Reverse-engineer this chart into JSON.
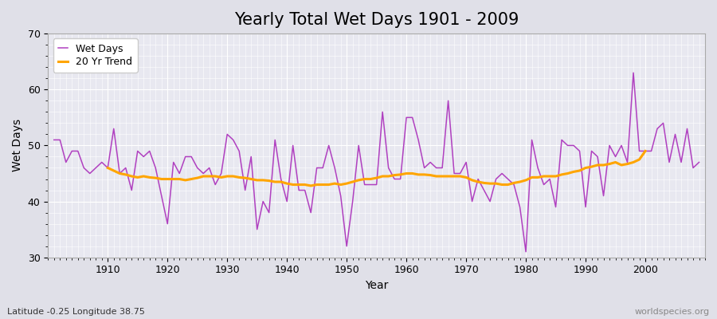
{
  "title": "Yearly Total Wet Days 1901 - 2009",
  "xlabel": "Year",
  "ylabel": "Wet Days",
  "subtitle": "Latitude -0.25 Longitude 38.75",
  "watermark": "worldspecies.org",
  "years": [
    1901,
    1902,
    1903,
    1904,
    1905,
    1906,
    1907,
    1908,
    1909,
    1910,
    1911,
    1912,
    1913,
    1914,
    1915,
    1916,
    1917,
    1918,
    1919,
    1920,
    1921,
    1922,
    1923,
    1924,
    1925,
    1926,
    1927,
    1928,
    1929,
    1930,
    1931,
    1932,
    1933,
    1934,
    1935,
    1936,
    1937,
    1938,
    1939,
    1940,
    1941,
    1942,
    1943,
    1944,
    1945,
    1946,
    1947,
    1948,
    1949,
    1950,
    1951,
    1952,
    1953,
    1954,
    1955,
    1956,
    1957,
    1958,
    1959,
    1960,
    1961,
    1962,
    1963,
    1964,
    1965,
    1966,
    1967,
    1968,
    1969,
    1970,
    1971,
    1972,
    1973,
    1974,
    1975,
    1976,
    1977,
    1978,
    1979,
    1980,
    1981,
    1982,
    1983,
    1984,
    1985,
    1986,
    1987,
    1988,
    1989,
    1990,
    1991,
    1992,
    1993,
    1994,
    1995,
    1996,
    1997,
    1998,
    1999,
    2000,
    2001,
    2002,
    2003,
    2004,
    2005,
    2006,
    2007,
    2008,
    2009
  ],
  "wet_days": [
    51,
    51,
    47,
    49,
    49,
    46,
    45,
    46,
    47,
    46,
    53,
    45,
    46,
    42,
    49,
    48,
    49,
    46,
    41,
    36,
    47,
    45,
    48,
    48,
    46,
    45,
    46,
    43,
    45,
    52,
    51,
    49,
    42,
    48,
    35,
    40,
    38,
    51,
    44,
    40,
    50,
    42,
    42,
    38,
    46,
    46,
    50,
    46,
    41,
    32,
    40,
    50,
    43,
    43,
    43,
    56,
    46,
    44,
    44,
    55,
    55,
    51,
    46,
    47,
    46,
    46,
    58,
    45,
    45,
    47,
    40,
    44,
    42,
    40,
    44,
    45,
    44,
    43,
    39,
    31,
    51,
    46,
    43,
    44,
    39,
    51,
    50,
    50,
    49,
    39,
    49,
    48,
    41,
    50,
    48,
    50,
    47,
    63,
    49,
    49,
    49,
    53,
    54,
    47,
    52,
    47,
    53,
    46,
    47
  ],
  "trend_years": [
    1910,
    1911,
    1912,
    1913,
    1914,
    1915,
    1916,
    1917,
    1918,
    1919,
    1920,
    1921,
    1922,
    1923,
    1924,
    1925,
    1926,
    1927,
    1928,
    1929,
    1930,
    1931,
    1932,
    1933,
    1934,
    1935,
    1936,
    1937,
    1938,
    1939,
    1940,
    1941,
    1942,
    1943,
    1944,
    1945,
    1946,
    1947,
    1948,
    1949,
    1950,
    1951,
    1952,
    1953,
    1954,
    1955,
    1956,
    1957,
    1958,
    1959,
    1960,
    1961,
    1962,
    1963,
    1964,
    1965,
    1966,
    1967,
    1968,
    1969,
    1970,
    1971,
    1972,
    1973,
    1974,
    1975,
    1976,
    1977,
    1978,
    1979,
    1980,
    1981,
    1982,
    1983,
    1984,
    1985,
    1986,
    1987,
    1988,
    1989,
    1990,
    1991,
    1992,
    1993,
    1994,
    1995,
    1996,
    1997,
    1998,
    1999,
    2000
  ],
  "trend_values": [
    46.0,
    45.5,
    45.0,
    44.8,
    44.5,
    44.3,
    44.5,
    44.3,
    44.2,
    44.0,
    44.0,
    44.0,
    44.0,
    43.8,
    44.0,
    44.2,
    44.5,
    44.5,
    44.5,
    44.3,
    44.5,
    44.5,
    44.3,
    44.2,
    44.0,
    43.8,
    43.8,
    43.7,
    43.5,
    43.5,
    43.2,
    43.0,
    43.0,
    43.0,
    42.8,
    43.0,
    43.0,
    43.0,
    43.2,
    43.0,
    43.2,
    43.5,
    43.8,
    44.0,
    44.0,
    44.2,
    44.5,
    44.5,
    44.7,
    44.8,
    45.0,
    45.0,
    44.8,
    44.8,
    44.7,
    44.5,
    44.5,
    44.5,
    44.5,
    44.5,
    44.3,
    43.8,
    43.5,
    43.3,
    43.2,
    43.2,
    43.0,
    43.0,
    43.3,
    43.5,
    43.8,
    44.3,
    44.3,
    44.5,
    44.5,
    44.5,
    44.8,
    45.0,
    45.3,
    45.5,
    46.0,
    46.2,
    46.5,
    46.5,
    46.7,
    47.0,
    46.5,
    46.7,
    47.0,
    47.5,
    49.0
  ],
  "wet_days_color": "#b040c0",
  "trend_color": "#FFA500",
  "fig_bg_color": "#e0e0e8",
  "plot_bg_color": "#e8e8f0",
  "ylim": [
    30,
    70
  ],
  "yticks": [
    30,
    40,
    50,
    60,
    70
  ],
  "xlim_left": 1900,
  "xlim_right": 2010,
  "title_fontsize": 15,
  "axis_fontsize": 10,
  "legend_fontsize": 9,
  "tick_fontsize": 9,
  "grid_color": "#ffffff",
  "grid_minor_color": "#d8d8e4",
  "spine_color": "#aaaaaa"
}
